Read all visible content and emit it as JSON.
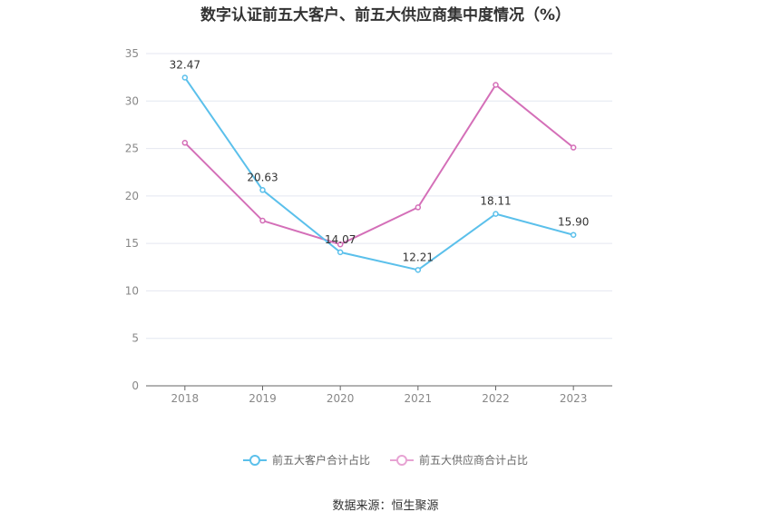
{
  "chart_data": {
    "type": "line",
    "title": "数字认证前五大客户、前五大供应商集中度情况（%）",
    "categories": [
      "2018",
      "2019",
      "2020",
      "2021",
      "2022",
      "2023"
    ],
    "ylim": [
      0,
      35
    ],
    "yticks": [
      0,
      5,
      10,
      15,
      20,
      25,
      30,
      35
    ],
    "grid": true,
    "legend_position": "bottom",
    "series": [
      {
        "name": "前五大客户合计占比",
        "color": "#5bc0eb",
        "values": [
          32.47,
          20.63,
          14.07,
          12.21,
          18.11,
          15.9
        ],
        "labels": [
          "32.47",
          "20.63",
          "14.07",
          "12.21",
          "18.11",
          "15.90"
        ]
      },
      {
        "name": "前五大供应商合计占比",
        "color": "#d46fb8",
        "values": [
          25.6,
          17.4,
          14.9,
          18.8,
          31.7,
          25.1
        ]
      }
    ]
  },
  "source": "数据来源：恒生聚源"
}
